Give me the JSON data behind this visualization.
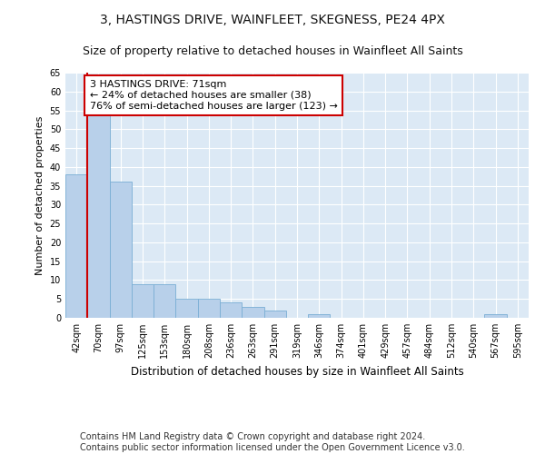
{
  "title1": "3, HASTINGS DRIVE, WAINFLEET, SKEGNESS, PE24 4PX",
  "title2": "Size of property relative to detached houses in Wainfleet All Saints",
  "xlabel": "Distribution of detached houses by size in Wainfleet All Saints",
  "ylabel": "Number of detached properties",
  "categories": [
    "42sqm",
    "70sqm",
    "97sqm",
    "125sqm",
    "153sqm",
    "180sqm",
    "208sqm",
    "236sqm",
    "263sqm",
    "291sqm",
    "319sqm",
    "346sqm",
    "374sqm",
    "401sqm",
    "429sqm",
    "457sqm",
    "484sqm",
    "512sqm",
    "540sqm",
    "567sqm",
    "595sqm"
  ],
  "values": [
    38,
    54,
    36,
    9,
    9,
    5,
    5,
    4,
    3,
    2,
    0,
    1,
    0,
    0,
    0,
    0,
    0,
    0,
    0,
    1,
    0
  ],
  "bar_color": "#b8d0ea",
  "bar_edge_color": "#7aaed4",
  "vline_color": "#cc0000",
  "annotation_text": "3 HASTINGS DRIVE: 71sqm\n← 24% of detached houses are smaller (38)\n76% of semi-detached houses are larger (123) →",
  "annotation_box_color": "#ffffff",
  "annotation_box_edge": "#cc0000",
  "ylim": [
    0,
    65
  ],
  "yticks": [
    0,
    5,
    10,
    15,
    20,
    25,
    30,
    35,
    40,
    45,
    50,
    55,
    60,
    65
  ],
  "bg_color": "#dce9f5",
  "grid_color": "#ffffff",
  "footer": "Contains HM Land Registry data © Crown copyright and database right 2024.\nContains public sector information licensed under the Open Government Licence v3.0.",
  "title1_fontsize": 10,
  "title2_fontsize": 9,
  "xlabel_fontsize": 8.5,
  "ylabel_fontsize": 8,
  "annotation_fontsize": 8,
  "footer_fontsize": 7,
  "tick_fontsize": 7
}
